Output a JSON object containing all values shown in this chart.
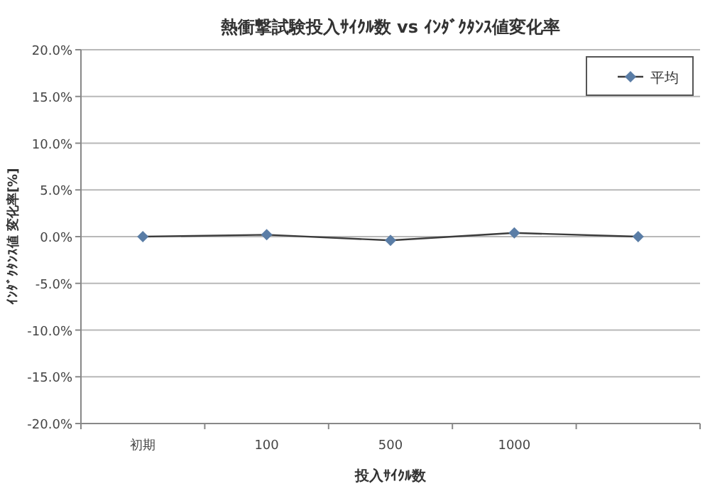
{
  "chart_data": {
    "type": "line",
    "title": "熱衝撃試験投入ｻｲｸﾙ数 vs ｲﾝﾀﾞｸﾀﾝｽ値変化率",
    "xlabel": "投入ｻｲｸﾙ数",
    "ylabel": "ｲﾝﾀﾞｸﾀﾝｽ値 変化率[%]",
    "categories": [
      "初期",
      "100",
      "500",
      "1000",
      null
    ],
    "series": [
      {
        "name": "平均",
        "color": "#5a7da6",
        "values": [
          0.0,
          0.2,
          -0.4,
          0.4,
          0.0
        ]
      }
    ],
    "ylim": [
      -20,
      20
    ],
    "yticks": [
      {
        "value": -20,
        "label": "-20.0%"
      },
      {
        "value": -15,
        "label": "-15.0%"
      },
      {
        "value": -10,
        "label": "-10.0%"
      },
      {
        "value": -5,
        "label": "-5.0%"
      },
      {
        "value": 0,
        "label": "0.0%"
      },
      {
        "value": 5,
        "label": "5.0%"
      },
      {
        "value": 10,
        "label": "10.0%"
      },
      {
        "value": 15,
        "label": "15.0%"
      },
      {
        "value": 20,
        "label": "20.0%"
      }
    ],
    "grid": "y",
    "legend": "top right",
    "marker": "diamond",
    "line_style": "solid"
  }
}
